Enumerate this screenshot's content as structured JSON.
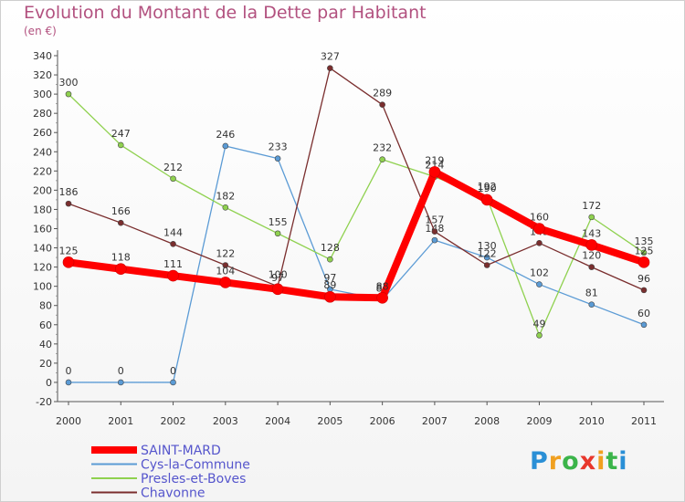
{
  "title": "Evolution du Montant de la Dette par Habitant",
  "subtitle": "(en €)",
  "logo": "Proxiti",
  "chart_data": {
    "type": "line",
    "categories": [
      "2000",
      "2001",
      "2002",
      "2003",
      "2004",
      "2005",
      "2006",
      "2007",
      "2008",
      "2009",
      "2010",
      "2011"
    ],
    "ylim": [
      -20,
      340
    ],
    "yticks": [
      -20,
      0,
      20,
      40,
      60,
      80,
      100,
      120,
      140,
      160,
      180,
      200,
      220,
      240,
      260,
      280,
      300,
      320,
      340
    ],
    "grid": false,
    "legend": "bottom-left",
    "series": [
      {
        "name": "Cys-la-Commune",
        "color": "#5b9bd5",
        "width": 1.3,
        "values": [
          0,
          0,
          0,
          246,
          233,
          97,
          86,
          148,
          130,
          102,
          81,
          60
        ]
      },
      {
        "name": "Presles-et-Boves",
        "color": "#8fd14f",
        "width": 1.3,
        "values": [
          300,
          247,
          212,
          182,
          155,
          128,
          232,
          214,
          192,
          49,
          172,
          135
        ]
      },
      {
        "name": "Chavonne",
        "color": "#7a2e2e",
        "width": 1.3,
        "values": [
          186,
          166,
          144,
          122,
          100,
          327,
          289,
          157,
          122,
          145,
          120,
          96
        ]
      },
      {
        "name": "SAINT-MARD",
        "color": "#ff0000",
        "width": 8,
        "values": [
          125,
          118,
          111,
          104,
          97,
          89,
          88,
          219,
          190,
          160,
          143,
          125
        ]
      }
    ],
    "legend_order": [
      "SAINT-MARD",
      "Cys-la-Commune",
      "Presles-et-Boves",
      "Chavonne"
    ]
  }
}
